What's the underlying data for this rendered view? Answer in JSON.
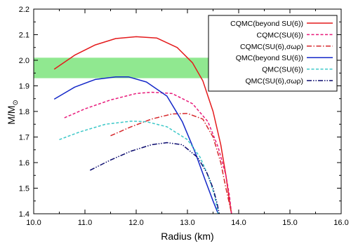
{
  "chart_data": {
    "type": "line",
    "xlabel": "Radius (km)",
    "ylabel": "M/M",
    "ylabel_subscript": "⊙",
    "xlim": [
      10.0,
      16.0
    ],
    "ylim": [
      1.4,
      2.2
    ],
    "x_major_ticks": [
      10.0,
      11.0,
      12.0,
      13.0,
      14.0,
      15.0,
      16.0
    ],
    "y_major_ticks": [
      1.4,
      1.5,
      1.6,
      1.7,
      1.8,
      1.9,
      2.0,
      2.1,
      2.2
    ],
    "x_tick_labels": [
      "10.0",
      "11.0",
      "12.0",
      "13.0",
      "14.0",
      "15.0",
      "16.0"
    ],
    "y_tick_labels": [
      "1.4",
      "1.5",
      "1.6",
      "1.7",
      "1.8",
      "1.9",
      "2.0",
      "2.1",
      "2.2"
    ],
    "band": {
      "y_range": [
        1.93,
        2.01
      ],
      "x_range": [
        10.0,
        14.0
      ],
      "color": "#90e890"
    },
    "legend_position": "top-right",
    "series": [
      {
        "name": "CQMC(beyond SU(6))",
        "color": "#e41a1c",
        "dash": "solid",
        "points": [
          [
            10.4,
            1.965
          ],
          [
            10.8,
            2.02
          ],
          [
            11.2,
            2.06
          ],
          [
            11.6,
            2.085
          ],
          [
            12.0,
            2.092
          ],
          [
            12.4,
            2.087
          ],
          [
            12.8,
            2.05
          ],
          [
            13.1,
            1.99
          ],
          [
            13.3,
            1.92
          ],
          [
            13.5,
            1.8
          ],
          [
            13.65,
            1.67
          ],
          [
            13.75,
            1.55
          ],
          [
            13.82,
            1.45
          ],
          [
            13.86,
            1.4
          ]
        ]
      },
      {
        "name": "CQMC(SU(6))",
        "color": "#e8197a",
        "dash": "dashed",
        "points": [
          [
            10.6,
            1.775
          ],
          [
            11.0,
            1.81
          ],
          [
            11.5,
            1.845
          ],
          [
            12.0,
            1.87
          ],
          [
            12.3,
            1.875
          ],
          [
            12.7,
            1.87
          ],
          [
            13.1,
            1.83
          ],
          [
            13.4,
            1.76
          ],
          [
            13.6,
            1.66
          ],
          [
            13.75,
            1.55
          ],
          [
            13.82,
            1.47
          ],
          [
            13.86,
            1.4
          ]
        ]
      },
      {
        "name": "CQMC(SU(6),σωρ)",
        "color": "#d6272b",
        "dash": "dashdot",
        "points": [
          [
            11.5,
            1.705
          ],
          [
            11.9,
            1.74
          ],
          [
            12.3,
            1.77
          ],
          [
            12.7,
            1.79
          ],
          [
            13.0,
            1.792
          ],
          [
            13.3,
            1.77
          ],
          [
            13.5,
            1.7
          ],
          [
            13.65,
            1.6
          ],
          [
            13.75,
            1.5
          ],
          [
            13.83,
            1.43
          ],
          [
            13.86,
            1.4
          ]
        ]
      },
      {
        "name": "QMC(beyond SU(6))",
        "color": "#1428c8",
        "dash": "solid",
        "points": [
          [
            10.4,
            1.848
          ],
          [
            10.8,
            1.895
          ],
          [
            11.2,
            1.925
          ],
          [
            11.6,
            1.935
          ],
          [
            11.85,
            1.935
          ],
          [
            12.2,
            1.915
          ],
          [
            12.6,
            1.86
          ],
          [
            12.9,
            1.76
          ],
          [
            13.15,
            1.64
          ],
          [
            13.35,
            1.53
          ],
          [
            13.5,
            1.45
          ],
          [
            13.6,
            1.4
          ]
        ]
      },
      {
        "name": "QMC(SU(6))",
        "color": "#3cc8c8",
        "dash": "dashed",
        "points": [
          [
            10.5,
            1.69
          ],
          [
            10.9,
            1.72
          ],
          [
            11.4,
            1.75
          ],
          [
            11.9,
            1.762
          ],
          [
            12.2,
            1.76
          ],
          [
            12.6,
            1.74
          ],
          [
            13.0,
            1.69
          ],
          [
            13.25,
            1.62
          ],
          [
            13.42,
            1.54
          ],
          [
            13.53,
            1.47
          ],
          [
            13.6,
            1.4
          ]
        ]
      },
      {
        "name": "QMC(SU(6),σωρ)",
        "color": "#0a0a6e",
        "dash": "dashdotdot",
        "points": [
          [
            11.1,
            1.57
          ],
          [
            11.5,
            1.61
          ],
          [
            11.9,
            1.645
          ],
          [
            12.3,
            1.67
          ],
          [
            12.6,
            1.678
          ],
          [
            12.9,
            1.67
          ],
          [
            13.2,
            1.62
          ],
          [
            13.38,
            1.56
          ],
          [
            13.5,
            1.5
          ],
          [
            13.58,
            1.44
          ],
          [
            13.62,
            1.4
          ]
        ]
      }
    ]
  }
}
